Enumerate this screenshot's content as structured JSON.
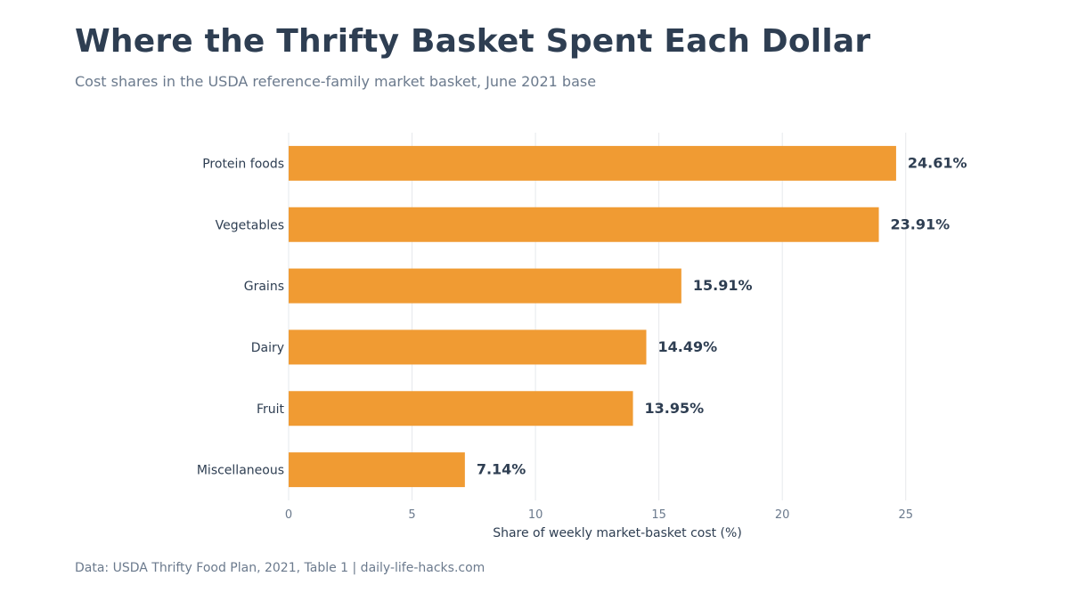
{
  "header": {
    "title": "Where the Thrifty Basket Spent Each Dollar",
    "subtitle": "Cost shares in the USDA reference-family market basket, June 2021 base"
  },
  "footer": {
    "source": "Data: USDA Thrifty Food Plan, 2021, Table 1 | daily-life-hacks.com"
  },
  "chart_data": {
    "type": "bar",
    "orientation": "horizontal",
    "title": "Where the Thrifty Basket Spent Each Dollar",
    "subtitle": "Cost shares in the USDA reference-family market basket, June 2021 base",
    "categories": [
      "Protein foods",
      "Vegetables",
      "Grains",
      "Dairy",
      "Fruit",
      "Miscellaneous"
    ],
    "values": [
      24.61,
      23.91,
      15.91,
      14.49,
      13.95,
      7.14
    ],
    "value_labels": [
      "24.61%",
      "23.91%",
      "15.91%",
      "14.49%",
      "13.95%",
      "7.14%"
    ],
    "xlabel": "Share of weekly market-basket cost (%)",
    "ylabel": "",
    "xlim": [
      0,
      27.5
    ],
    "xticks": [
      0,
      5,
      10,
      15,
      20,
      25
    ],
    "grid": "vertical",
    "legend": "none",
    "colors": {
      "bar": "#f09b33",
      "grid": "#e6e8ec",
      "text": "#2e3e52",
      "muted": "#6b7a8d"
    }
  }
}
